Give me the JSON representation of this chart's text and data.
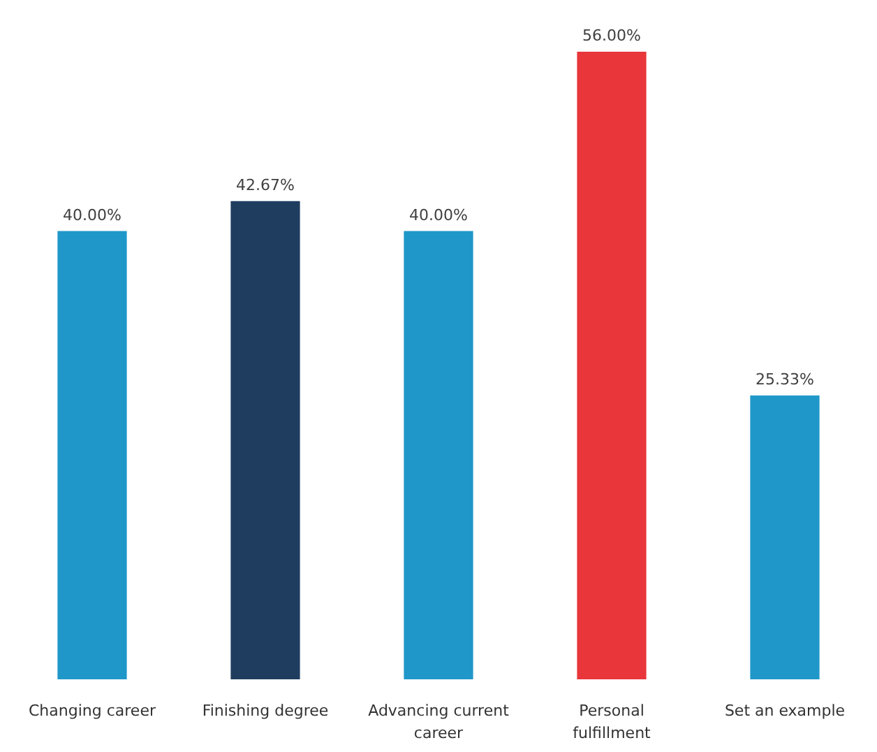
{
  "chart_data": {
    "type": "bar",
    "categories": [
      "Changing career",
      "Finishing degree",
      "Advancing current career",
      "Personal fulfillment",
      "Set an example"
    ],
    "values": [
      40,
      42.67,
      40,
      56,
      25.33
    ],
    "colors": [
      "#1f97c9",
      "#1f3d5f",
      "#1f97c9",
      "#e8363b",
      "#1f97c9"
    ],
    "value_labels": [
      "40.00%",
      "42.67%",
      "40.00%",
      "56.00%",
      "25.33%"
    ]
  }
}
